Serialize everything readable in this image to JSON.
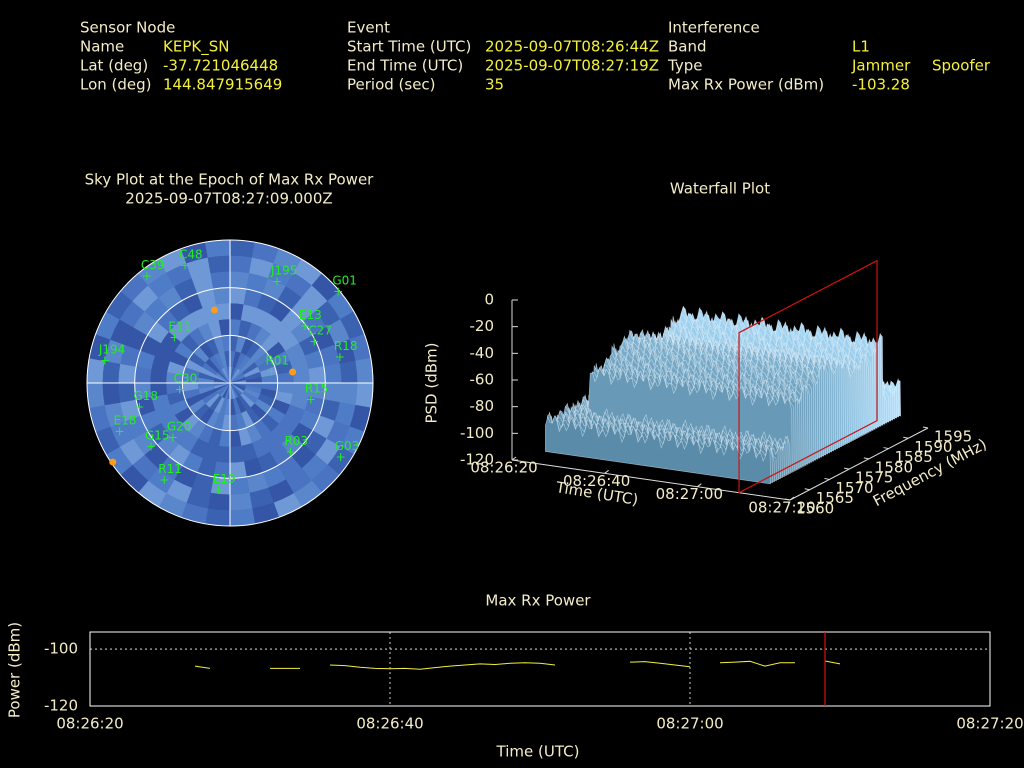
{
  "header": [
    {
      "title": "Sensor Node",
      "rows": [
        [
          "Name",
          "KEPK_SN"
        ],
        [
          "Lat (deg)",
          "-37.721046448"
        ],
        [
          "Lon (deg)",
          "144.847915649"
        ]
      ]
    },
    {
      "title": "Event",
      "rows": [
        [
          "Start Time (UTC)",
          "2025-09-07T08:26:44Z"
        ],
        [
          "End Time (UTC)",
          "2025-09-07T08:27:19Z"
        ],
        [
          "Period (sec)",
          "35"
        ]
      ]
    },
    {
      "title": "Interference",
      "rows": [
        [
          "Band",
          "L1"
        ],
        [
          "Type",
          "Jammer",
          "Spoofer"
        ],
        [
          "Max Rx Power (dBm)",
          "-103.28"
        ]
      ]
    }
  ],
  "chart_data": [
    {
      "type": "polar-scatter",
      "title": "Sky Plot at the Epoch of Max Rx Power",
      "subtitle": "2025-09-07T08:27:09.000Z",
      "color": "#22ee22",
      "points": [
        {
          "label": "C48",
          "az": 339,
          "el": 11
        },
        {
          "label": "C39",
          "az": 322,
          "el": 5
        },
        {
          "label": "J195",
          "az": 25,
          "el": 20
        },
        {
          "label": "G01",
          "az": 50,
          "el": 1
        },
        {
          "label": "E13",
          "az": 53,
          "el": 31
        },
        {
          "label": "C27",
          "az": 64,
          "el": 31
        },
        {
          "label": "R18",
          "az": 77,
          "el": 19
        },
        {
          "label": "R01",
          "az": 75,
          "el": 63
        },
        {
          "label": "C30",
          "az": 262,
          "el": 58
        },
        {
          "label": "E11",
          "az": 309,
          "el": 45
        },
        {
          "label": "G15",
          "az": 231,
          "el": 26
        },
        {
          "label": "E18",
          "az": 246,
          "el": 14
        },
        {
          "label": "G03",
          "az": 124,
          "el": 6
        },
        {
          "label": "R11",
          "az": 214,
          "el": 16
        },
        {
          "label": "E19",
          "az": 186,
          "el": 22
        },
        {
          "label": "J194",
          "az": 280,
          "el": 10
        },
        {
          "label": "R15",
          "az": 102,
          "el": 38
        },
        {
          "label": "G18",
          "az": 255,
          "el": 31
        },
        {
          "label": "G20",
          "az": 226,
          "el": 40
        },
        {
          "label": "R03",
          "az": 139,
          "el": 32
        }
      ],
      "markers": {
        "color": "#ff9a1a",
        "points": [
          {
            "az": 348,
            "el": 43
          },
          {
            "az": 80,
            "el": 50
          },
          {
            "az": 236,
            "el": 1
          }
        ]
      }
    },
    {
      "type": "surface3d",
      "title": "Waterfall Plot",
      "xlabel": "Time (UTC)",
      "ylabel": "Frequency (MHz)",
      "zlabel": "PSD (dBm)",
      "xlim": [
        "08:26:20",
        "08:27:20"
      ],
      "xticks": [
        "08:26:20",
        "08:26:40",
        "08:27:00",
        "08:27:20"
      ],
      "ylim": [
        1560,
        1595
      ],
      "yticks": [
        1560,
        1565,
        1570,
        1575,
        1580,
        1585,
        1590,
        1595
      ],
      "zlim": [
        -120,
        0
      ],
      "zticks": [
        -120,
        -100,
        -80,
        -60,
        -40,
        -20,
        0
      ],
      "marker_x": "08:27:09",
      "marker_color": "#cc1111"
    },
    {
      "type": "line",
      "title": "Max Rx Power",
      "xlabel": "Time (UTC)",
      "ylabel": "Power (dBm)",
      "color": "#f5f03a",
      "x": [
        "08:26:20",
        "08:26:21",
        "08:26:22",
        "08:26:23",
        "08:26:24",
        "08:26:25",
        "08:26:26",
        "08:26:27",
        "08:26:28",
        "08:26:29",
        "08:26:30",
        "08:26:31",
        "08:26:32",
        "08:26:33",
        "08:26:34",
        "08:26:35",
        "08:26:36",
        "08:26:37",
        "08:26:38",
        "08:26:39",
        "08:26:40",
        "08:26:41",
        "08:26:42",
        "08:26:43",
        "08:26:44",
        "08:26:45",
        "08:26:46",
        "08:26:47",
        "08:26:48",
        "08:26:49",
        "08:26:50",
        "08:26:51",
        "08:26:52",
        "08:26:53",
        "08:26:54",
        "08:26:55",
        "08:26:56",
        "08:26:57",
        "08:26:58",
        "08:26:59",
        "08:27:00",
        "08:27:01",
        "08:27:02",
        "08:27:03",
        "08:27:04",
        "08:27:05",
        "08:27:06",
        "08:27:07",
        "08:27:08",
        "08:27:09",
        "08:27:10",
        "08:27:11",
        "08:27:12",
        "08:27:13",
        "08:27:14",
        "08:27:15",
        "08:27:16",
        "08:27:17",
        "08:27:18",
        "08:27:19",
        "08:27:20"
      ],
      "values": [
        null,
        null,
        null,
        null,
        null,
        null,
        null,
        -106.0,
        -106.8,
        null,
        null,
        null,
        -106.8,
        -106.8,
        -106.8,
        null,
        -105.6,
        -105.8,
        -106.4,
        -106.8,
        -106.9,
        -106.8,
        -107.1,
        -106.5,
        -106.0,
        -105.6,
        -105.2,
        -105.4,
        -105.0,
        -104.8,
        -105.0,
        -105.6,
        null,
        null,
        null,
        null,
        -104.6,
        -104.4,
        -105.0,
        -105.6,
        -106.2,
        null,
        -104.8,
        -104.6,
        -104.3,
        -106.0,
        -104.8,
        -104.8,
        null,
        -104.2,
        -105.2,
        null,
        null,
        null,
        null,
        null,
        null,
        null,
        null,
        null,
        null
      ],
      "xlim": [
        "08:26:20",
        "08:27:20"
      ],
      "xticks": [
        "08:26:20",
        "08:26:40",
        "08:27:00",
        "08:27:20"
      ],
      "ylim": [
        -120,
        -94
      ],
      "yticks": [
        -120,
        -100
      ],
      "grid": true,
      "marker_x": "08:27:09",
      "marker_color": "#dd1111"
    }
  ]
}
